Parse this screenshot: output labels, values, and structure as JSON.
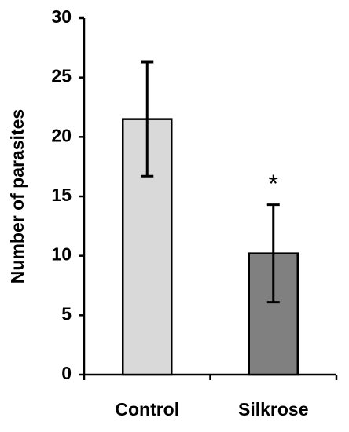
{
  "chart_data": {
    "type": "bar",
    "y_label": "Number of parasites",
    "categories": [
      "Control",
      "Silkrose"
    ],
    "values": [
      21.5,
      10.2
    ],
    "errors": [
      4.8,
      4.1
    ],
    "colors": [
      "#d9d9d9",
      "#808080"
    ],
    "annotations": [
      {
        "text": "*",
        "category": "Silkrose"
      }
    ],
    "ylim": [
      0,
      30
    ],
    "yticks": [
      0,
      5,
      10,
      15,
      20,
      25,
      30
    ],
    "grid": false
  }
}
